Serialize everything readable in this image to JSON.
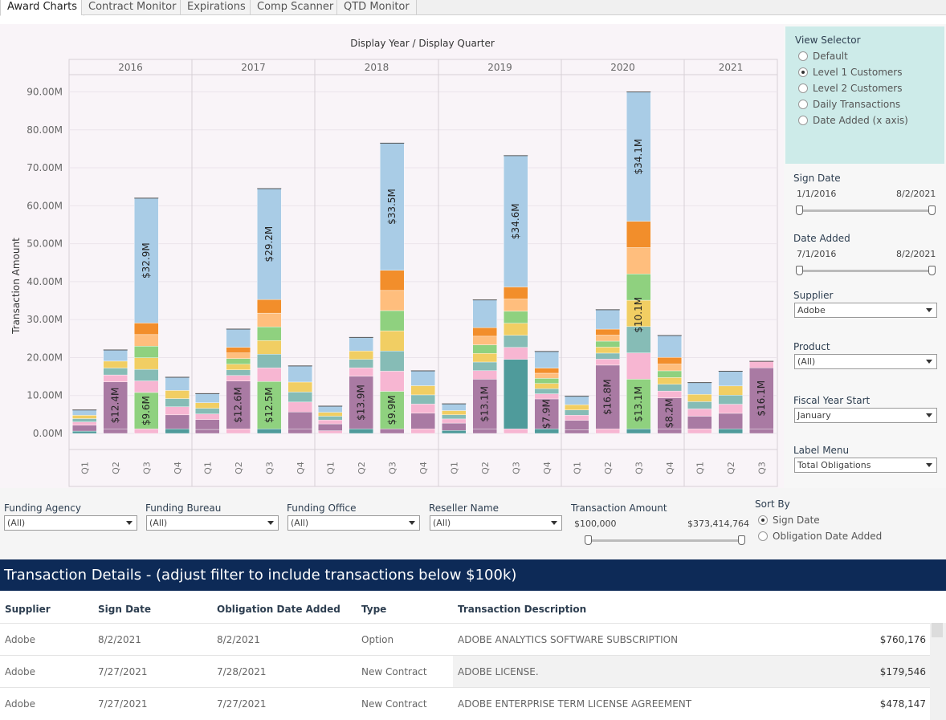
{
  "tabs": [
    {
      "label": "Award Charts",
      "active": true
    },
    {
      "label": "Contract Monitor",
      "active": false
    },
    {
      "label": "Expirations",
      "active": false
    },
    {
      "label": "Comp Scanner",
      "active": false
    },
    {
      "label": "QTD Monitor",
      "active": false
    }
  ],
  "chart_data": {
    "type": "bar",
    "stacked": true,
    "title": "Display Year  /  Display Quarter",
    "ylabel": "Transaction Amount",
    "ylim": [
      0,
      95000000
    ],
    "yticks": [
      "0.00M",
      "10.00M",
      "20.00M",
      "30.00M",
      "40.00M",
      "50.00M",
      "60.00M",
      "70.00M",
      "80.00M",
      "90.00M"
    ],
    "years": [
      {
        "year": "2016",
        "quarters": [
          {
            "q": "Q1",
            "total_m": 6.2
          },
          {
            "q": "Q2",
            "total_m": 22.0,
            "label": "$12.4M",
            "label_value_m": 12.4
          },
          {
            "q": "Q3",
            "total_m": 62.0,
            "label": "$32.9M",
            "label_value_m": 32.9,
            "label2": "$9.6M",
            "label2_value_m": 9.6
          },
          {
            "q": "Q4",
            "total_m": 14.8
          }
        ]
      },
      {
        "year": "2017",
        "quarters": [
          {
            "q": "Q1",
            "total_m": 10.5
          },
          {
            "q": "Q2",
            "total_m": 27.5,
            "label": "$12.6M",
            "label_value_m": 12.6
          },
          {
            "q": "Q3",
            "total_m": 64.5,
            "label": "$29.2M",
            "label_value_m": 29.2,
            "label2": "$12.5M",
            "label2_value_m": 12.5
          },
          {
            "q": "Q4",
            "total_m": 17.8
          }
        ]
      },
      {
        "year": "2018",
        "quarters": [
          {
            "q": "Q1",
            "total_m": 7.2
          },
          {
            "q": "Q2",
            "total_m": 25.3,
            "label": "$13.9M",
            "label_value_m": 13.9
          },
          {
            "q": "Q3",
            "total_m": 76.5,
            "label": "$33.5M",
            "label_value_m": 33.5,
            "label2": "$9.9M",
            "label2_value_m": 9.9
          },
          {
            "q": "Q4",
            "total_m": 16.5
          }
        ]
      },
      {
        "year": "2019",
        "quarters": [
          {
            "q": "Q1",
            "total_m": 7.8
          },
          {
            "q": "Q2",
            "total_m": 35.2,
            "label": "$13.1M",
            "label_value_m": 13.1
          },
          {
            "q": "Q3",
            "total_m": 73.2,
            "label": "$34.6M",
            "label_value_m": 34.6
          },
          {
            "q": "Q4",
            "total_m": 21.6,
            "label": "$7.9M",
            "label_value_m": 7.9
          }
        ]
      },
      {
        "year": "2020",
        "quarters": [
          {
            "q": "Q1",
            "total_m": 9.8
          },
          {
            "q": "Q2",
            "total_m": 32.6,
            "label": "$16.8M",
            "label_value_m": 16.8
          },
          {
            "q": "Q3",
            "total_m": 90.0,
            "label": "$34.1M",
            "label_value_m": 34.1,
            "label2": "$13.1M",
            "label2_value_m": 13.1,
            "label3": "$10.1M",
            "label3_value_m": 10.1
          },
          {
            "q": "Q4",
            "total_m": 25.8,
            "label": "$8.2M",
            "label_value_m": 8.2
          }
        ]
      },
      {
        "year": "2021",
        "quarters": [
          {
            "q": "Q1",
            "total_m": 13.4
          },
          {
            "q": "Q2",
            "total_m": 16.4
          },
          {
            "q": "Q3",
            "total_m": 19.0,
            "label": "$16.1M",
            "label_value_m": 16.1
          }
        ]
      }
    ]
  },
  "view_selector": {
    "title": "View Selector",
    "options": [
      {
        "label": "Default",
        "checked": false
      },
      {
        "label": "Level 1 Customers",
        "checked": true
      },
      {
        "label": "Level 2 Customers",
        "checked": false
      },
      {
        "label": "Daily Transactions",
        "checked": false
      },
      {
        "label": "Date Added (x axis)",
        "checked": false
      }
    ]
  },
  "sign_date": {
    "label": "Sign Date",
    "start": "1/1/2016",
    "end": "8/2/2021"
  },
  "date_added": {
    "label": "Date Added",
    "start": "7/1/2016",
    "end": "8/2/2021"
  },
  "supplier": {
    "label": "Supplier",
    "value": "Adobe"
  },
  "product": {
    "label": "Product",
    "value": "(All)"
  },
  "fiscal_year_start": {
    "label": "Fiscal Year Start",
    "value": "January"
  },
  "label_menu": {
    "label": "Label Menu",
    "value": "Total Obligations"
  },
  "filters": {
    "funding_agency": {
      "label": "Funding Agency",
      "value": "(All)"
    },
    "funding_bureau": {
      "label": "Funding Bureau",
      "value": "(All)"
    },
    "funding_office": {
      "label": "Funding Office",
      "value": "(All)"
    },
    "reseller_name": {
      "label": "Reseller Name",
      "value": "(All)"
    },
    "transaction_amount": {
      "label": "Transaction Amount",
      "min": "$100,000",
      "max": "$373,414,764"
    },
    "sort_by": {
      "label": "Sort By",
      "options": [
        {
          "label": "Sign Date",
          "checked": true
        },
        {
          "label": "Obligation Date Added",
          "checked": false
        }
      ]
    }
  },
  "details": {
    "title": "Transaction Details - (adjust filter to include transactions below $100k)",
    "columns": [
      "Supplier",
      "Sign Date",
      "Obligation Date Added",
      "Type",
      "Transaction Description"
    ],
    "rows": [
      {
        "supplier": "Adobe",
        "sign_date": "8/2/2021",
        "added": "8/2/2021",
        "type": "Option",
        "desc": "ADOBE ANALYTICS SOFTWARE SUBSCRIPTION",
        "amount": "$760,176"
      },
      {
        "supplier": "Adobe",
        "sign_date": "7/27/2021",
        "added": "7/28/2021",
        "type": "New Contract",
        "desc": "ADOBE LICENSE.",
        "amount": "$179,546"
      },
      {
        "supplier": "Adobe",
        "sign_date": "7/27/2021",
        "added": "7/27/2021",
        "type": "New Contract",
        "desc": "ADOBE ENTERPRISE TERM LICENSE AGREEMENT",
        "amount": "$478,147"
      }
    ]
  },
  "colors": {
    "header_bg": "#0d2a57",
    "view_selector_bg": "#cdebe9",
    "chart_bg": "#f9f4f8",
    "light_blue": "#a9cce6",
    "purple": "#a97aa3",
    "green": "#8fd17f",
    "teal": "#4f9b9b",
    "pink": "#f7b6d2",
    "orange": "#f28e2b",
    "light_orange": "#ffbe7d"
  }
}
